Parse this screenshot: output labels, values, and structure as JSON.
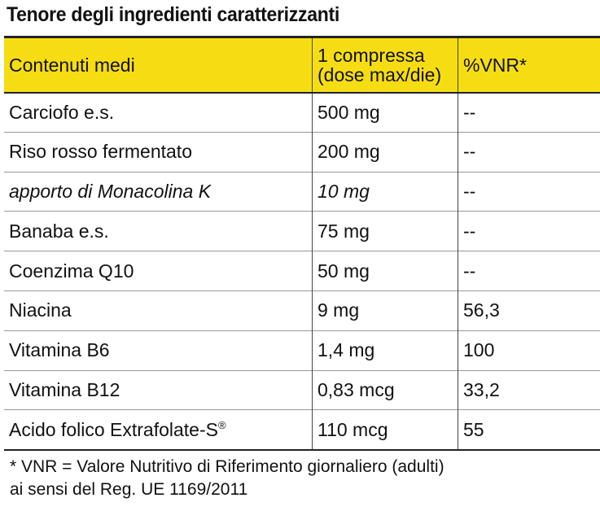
{
  "title": "Tenore degli ingredienti caratterizzanti",
  "table": {
    "headers": [
      "Contenuti medi",
      "1 compressa\n(dose max/die)",
      "%VNR*"
    ],
    "rows": [
      {
        "name": "Carciofo e.s.",
        "amount": "500 mg",
        "vnr": "--"
      },
      {
        "name": "Riso rosso fermentato",
        "amount": "200 mg",
        "vnr": "--"
      },
      {
        "name": "apporto di Monacolina K",
        "amount": "10 mg",
        "vnr": "--"
      },
      {
        "name": "Banaba e.s.",
        "amount": "75 mg",
        "vnr": "--"
      },
      {
        "name": "Coenzima Q10",
        "amount": "50 mg",
        "vnr": "--"
      },
      {
        "name": "Niacina",
        "amount": "9 mg",
        "vnr": "56,3"
      },
      {
        "name": "Vitamina B6",
        "amount": "1,4 mg",
        "vnr": "100"
      },
      {
        "name": "Vitamina B12",
        "amount": "0,83 mcg",
        "vnr": "33,2"
      },
      {
        "name": "Acido folico Extrafolate-S",
        "name_sup": "®",
        "amount": "110 mcg",
        "vnr": "55"
      }
    ]
  },
  "footnote": {
    "line1": "* VNR = Valore Nutritivo di Riferimento giornaliero (adulti)",
    "line2": "ai sensi del Reg. UE 1169/2011"
  },
  "colors": {
    "header_bg": "#f6dd13",
    "text": "#111111"
  }
}
